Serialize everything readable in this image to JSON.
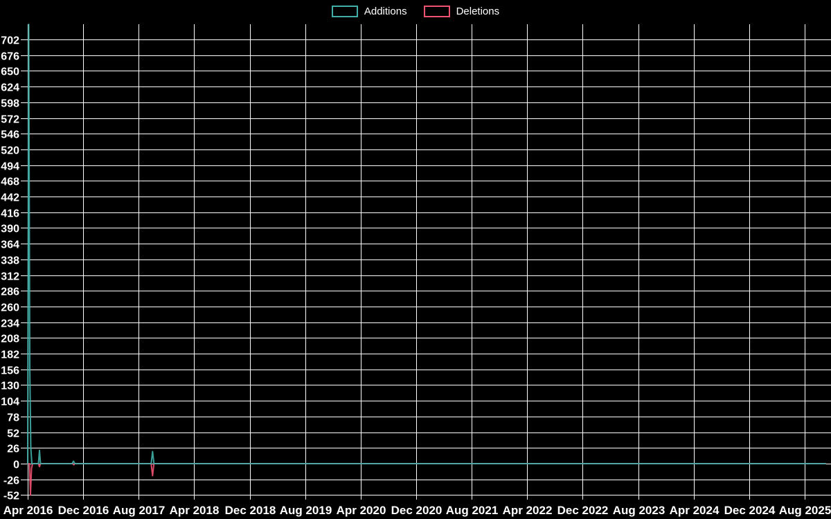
{
  "chart_data": {
    "type": "line",
    "title": "",
    "legend_position": "top-center",
    "grid": true,
    "background_color": "#000000",
    "grid_color": "#ffffff",
    "text_color": "#ffffff",
    "x_axis": {
      "tick_labels": [
        "Apr 2016",
        "Dec 2016",
        "Aug 2017",
        "Apr 2018",
        "Dec 2018",
        "Aug 2019",
        "Apr 2020",
        "Dec 2020",
        "Aug 2021",
        "Apr 2022",
        "Dec 2022",
        "Aug 2023",
        "Apr 2024",
        "Dec 2024",
        "Aug 2025"
      ],
      "months_between_ticks": 8,
      "start_label": "Apr 2016",
      "end_month_offset": 115
    },
    "y_axis": {
      "tick_labels": [
        702,
        676,
        650,
        624,
        598,
        572,
        546,
        520,
        494,
        468,
        442,
        416,
        390,
        364,
        338,
        312,
        286,
        260,
        234,
        208,
        182,
        156,
        130,
        104,
        78,
        52,
        26,
        0,
        -26,
        -52
      ],
      "step": 26,
      "min": -54,
      "max": 727
    },
    "series": [
      {
        "name": "Additions",
        "color": "#40b0a8",
        "points_month_value": [
          [
            0,
            0
          ],
          [
            0.15,
            727
          ],
          [
            0.3,
            160
          ],
          [
            0.45,
            26
          ],
          [
            0.6,
            0
          ],
          [
            1.55,
            0
          ],
          [
            1.7,
            22
          ],
          [
            1.85,
            0
          ],
          [
            6.4,
            0
          ],
          [
            6.6,
            4
          ],
          [
            6.8,
            0
          ],
          [
            17.8,
            0
          ],
          [
            18,
            20
          ],
          [
            18.2,
            0
          ],
          [
            115,
            0
          ]
        ]
      },
      {
        "name": "Deletions",
        "color": "#ef5170",
        "points_month_value": [
          [
            0,
            0
          ],
          [
            0.25,
            0
          ],
          [
            0.4,
            -52
          ],
          [
            0.55,
            -8
          ],
          [
            0.7,
            0
          ],
          [
            1.55,
            0
          ],
          [
            1.7,
            -5
          ],
          [
            1.85,
            0
          ],
          [
            6.5,
            0
          ],
          [
            6.65,
            -2
          ],
          [
            6.8,
            0
          ],
          [
            17.8,
            0
          ],
          [
            18,
            -20
          ],
          [
            18.2,
            0
          ],
          [
            115,
            0
          ]
        ]
      }
    ]
  }
}
